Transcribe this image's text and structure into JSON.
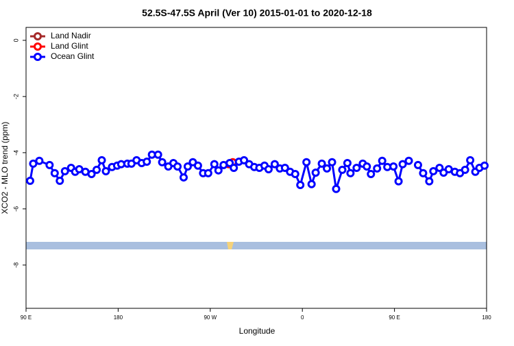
{
  "chart_data": {
    "type": "line",
    "title": "52.5S-47.5S April (Ver 10)   2015-01-01 to 2020-12-18",
    "x_label": "Longitude",
    "y_label": "XCO2 - MLO trend (ppm)",
    "xlim": [
      90,
      540
    ],
    "xticks": [
      {
        "value": 90,
        "label": "90 E"
      },
      {
        "value": 180,
        "label": "180"
      },
      {
        "value": 270,
        "label": "90 W"
      },
      {
        "value": 360,
        "label": "0"
      },
      {
        "value": 450,
        "label": "90 E"
      },
      {
        "value": 540,
        "label": "180"
      }
    ],
    "ylim": [
      -9.54,
      0.46
    ],
    "yticks": [
      0,
      -2,
      -4,
      -6,
      -8
    ],
    "legend": "top-left",
    "series": [
      {
        "name": "Land Nadir",
        "color": "#a52a2a",
        "x": [],
        "values": []
      },
      {
        "name": "Land Glint",
        "color": "#ff0000",
        "x": [
          288,
          292
        ],
        "values": [
          -4.41,
          -4.34
        ]
      },
      {
        "name": "Ocean Glint",
        "color": "#0000ff",
        "x": [
          94,
          97,
          103,
          113,
          118,
          123,
          128,
          134,
          138,
          142,
          148,
          154,
          159,
          164,
          168,
          174,
          179,
          183,
          189,
          193,
          198,
          203,
          208,
          213,
          219,
          223,
          229,
          234,
          238,
          244,
          248,
          253,
          258,
          263,
          268,
          274,
          278,
          283,
          289,
          293,
          298,
          303,
          308,
          313,
          318,
          323,
          327,
          333,
          338,
          343,
          348,
          353,
          358,
          364,
          369,
          373,
          379,
          384,
          389,
          393,
          399,
          404,
          407,
          413,
          419,
          423,
          427,
          433,
          438,
          443,
          449,
          454,
          458,
          464,
          468,
          473,
          478,
          484,
          488,
          494,
          498,
          503,
          509,
          514,
          519,
          524,
          529,
          533,
          538
        ],
        "values": [
          -5.0,
          -4.39,
          -4.29,
          -4.44,
          -4.73,
          -5.0,
          -4.66,
          -4.54,
          -4.68,
          -4.59,
          -4.68,
          -4.76,
          -4.61,
          -4.27,
          -4.66,
          -4.51,
          -4.46,
          -4.41,
          -4.39,
          -4.39,
          -4.27,
          -4.37,
          -4.32,
          -4.07,
          -4.07,
          -4.34,
          -4.49,
          -4.37,
          -4.49,
          -4.88,
          -4.49,
          -4.34,
          -4.46,
          -4.73,
          -4.73,
          -4.41,
          -4.63,
          -4.44,
          -4.37,
          -4.54,
          -4.32,
          -4.27,
          -4.41,
          -4.51,
          -4.54,
          -4.46,
          -4.59,
          -4.41,
          -4.56,
          -4.54,
          -4.68,
          -4.76,
          -5.15,
          -4.34,
          -5.12,
          -4.71,
          -4.39,
          -4.56,
          -4.34,
          -5.29,
          -4.61,
          -4.37,
          -4.73,
          -4.54,
          -4.39,
          -4.49,
          -4.76,
          -4.56,
          -4.29,
          -4.51,
          -4.49,
          -5.02,
          -4.41,
          -4.29,
          null,
          -4.44,
          -4.73,
          -5.02,
          -4.66,
          -4.54,
          -4.71,
          -4.59,
          -4.68,
          -4.73,
          -4.61,
          -4.27,
          -4.68,
          -4.54,
          -4.46
        ]
      }
    ]
  }
}
